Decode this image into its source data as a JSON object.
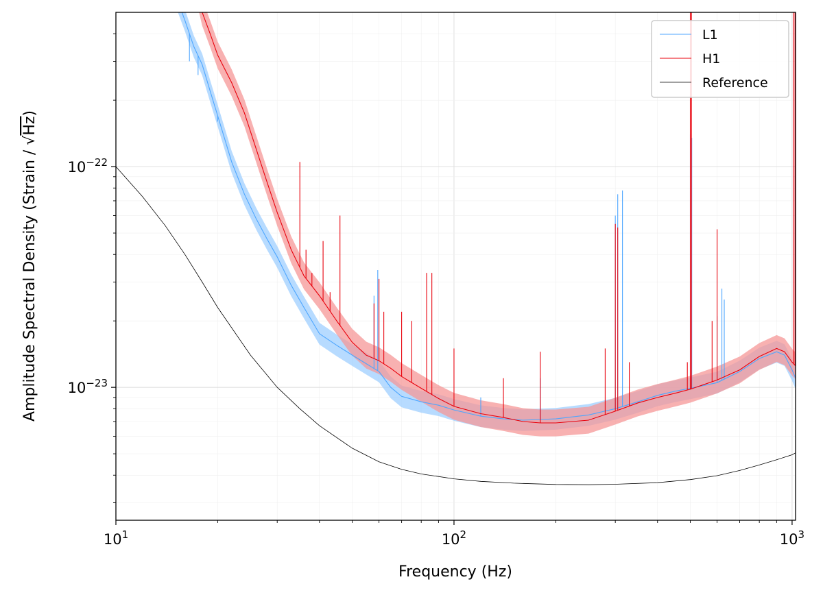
{
  "chart_data": {
    "type": "line",
    "title": "",
    "xlabel": "Frequency (Hz)",
    "ylabel_prefix": "Amplitude Spectral Density (Strain / ",
    "ylabel_radicand": "Hz",
    "ylabel_suffix": ")",
    "xscale": "log",
    "yscale": "log",
    "xlim": [
      10,
      1024
    ],
    "ylim": [
      2.5e-24,
      5e-22
    ],
    "grid": true,
    "legend_position": "top-right",
    "x_ticks": [
      {
        "value": 10,
        "base": "10",
        "exp": "1"
      },
      {
        "value": 100,
        "base": "10",
        "exp": "2"
      },
      {
        "value": 1000,
        "base": "10",
        "exp": "3"
      }
    ],
    "y_ticks": [
      {
        "value": 1e-23,
        "base": "10",
        "exp": "−23"
      },
      {
        "value": 1e-22,
        "base": "10",
        "exp": "−22"
      }
    ],
    "series": [
      {
        "name": "L1",
        "color": "#4da6ff",
        "band_color": "#9fcfff",
        "points": [
          [
            15,
            6e-22
          ],
          [
            16,
            4.6e-22
          ],
          [
            17,
            3.5e-22
          ],
          [
            18,
            2.9e-22
          ],
          [
            19,
            2.2e-22
          ],
          [
            20,
            1.7e-22
          ],
          [
            22,
            1.05e-22
          ],
          [
            24,
            7.5e-23
          ],
          [
            26,
            5.8e-23
          ],
          [
            28,
            4.7e-23
          ],
          [
            30,
            3.9e-23
          ],
          [
            33,
            2.9e-23
          ],
          [
            36,
            2.3e-23
          ],
          [
            40,
            1.75e-23
          ],
          [
            45,
            1.55e-23
          ],
          [
            50,
            1.4e-23
          ],
          [
            55,
            1.28e-23
          ],
          [
            60,
            1.18e-23
          ],
          [
            65,
            1e-23
          ],
          [
            70,
            9.1e-24
          ],
          [
            80,
            8.6e-24
          ],
          [
            90,
            8.3e-24
          ],
          [
            100,
            7.9e-24
          ],
          [
            120,
            7.4e-24
          ],
          [
            140,
            7.2e-24
          ],
          [
            160,
            7.1e-24
          ],
          [
            180,
            7.15e-24
          ],
          [
            200,
            7.2e-24
          ],
          [
            250,
            7.5e-24
          ],
          [
            300,
            8e-24
          ],
          [
            350,
            8.6e-24
          ],
          [
            400,
            9.2e-24
          ],
          [
            450,
            9.6e-24
          ],
          [
            500,
            9.9e-24
          ],
          [
            600,
            1.05e-23
          ],
          [
            700,
            1.18e-23
          ],
          [
            800,
            1.35e-23
          ],
          [
            900,
            1.45e-23
          ],
          [
            950,
            1.4e-23
          ],
          [
            1000,
            1.2e-23
          ],
          [
            1024,
            1.1e-23
          ]
        ],
        "band_ratio": 1.12,
        "peaks": [
          [
            16.5,
            3e-22
          ],
          [
            17.5,
            2.6e-22
          ],
          [
            20,
            1.6e-22
          ],
          [
            58,
            2.6e-23
          ],
          [
            59.5,
            3.4e-23
          ],
          [
            120,
            9e-24
          ],
          [
            180,
            1.1e-23
          ],
          [
            300,
            6e-23
          ],
          [
            305,
            7.5e-23
          ],
          [
            315,
            7.8e-23
          ],
          [
            500,
            1.4e-22
          ],
          [
            505,
            1.35e-22
          ],
          [
            600,
            2.1e-23
          ],
          [
            620,
            2.8e-23
          ],
          [
            630,
            2.5e-23
          ]
        ]
      },
      {
        "name": "H1",
        "color": "#e8000b",
        "band_color": "#f59797",
        "points": [
          [
            17.5,
            6e-22
          ],
          [
            18,
            5e-22
          ],
          [
            19,
            4e-22
          ],
          [
            20,
            3.2e-22
          ],
          [
            22,
            2.4e-22
          ],
          [
            24,
            1.75e-22
          ],
          [
            26,
            1.2e-22
          ],
          [
            28,
            8.5e-23
          ],
          [
            30,
            6.2e-23
          ],
          [
            33,
            4.2e-23
          ],
          [
            36,
            3.2e-23
          ],
          [
            40,
            2.6e-23
          ],
          [
            45,
            2e-23
          ],
          [
            50,
            1.6e-23
          ],
          [
            55,
            1.4e-23
          ],
          [
            60,
            1.32e-23
          ],
          [
            65,
            1.22e-23
          ],
          [
            70,
            1.12e-23
          ],
          [
            80,
            9.9e-24
          ],
          [
            90,
            8.9e-24
          ],
          [
            100,
            8.2e-24
          ],
          [
            120,
            7.6e-24
          ],
          [
            140,
            7.3e-24
          ],
          [
            160,
            7e-24
          ],
          [
            180,
            6.9e-24
          ],
          [
            200,
            6.9e-24
          ],
          [
            250,
            7.1e-24
          ],
          [
            300,
            7.8e-24
          ],
          [
            350,
            8.5e-24
          ],
          [
            400,
            9e-24
          ],
          [
            450,
            9.4e-24
          ],
          [
            500,
            9.8e-24
          ],
          [
            600,
            1.08e-23
          ],
          [
            700,
            1.2e-23
          ],
          [
            800,
            1.38e-23
          ],
          [
            900,
            1.5e-23
          ],
          [
            950,
            1.45e-23
          ],
          [
            1000,
            1.3e-23
          ],
          [
            1024,
            1.25e-23
          ]
        ],
        "band_ratio": 1.15,
        "peaks": [
          [
            35,
            1.05e-22
          ],
          [
            36.5,
            4.2e-23
          ],
          [
            38,
            3.3e-23
          ],
          [
            41,
            4.6e-23
          ],
          [
            43,
            2.7e-23
          ],
          [
            46,
            6e-23
          ],
          [
            58,
            2.4e-23
          ],
          [
            60,
            3.1e-23
          ],
          [
            62,
            2.2e-23
          ],
          [
            70,
            2.2e-23
          ],
          [
            75,
            2e-23
          ],
          [
            83,
            3.3e-23
          ],
          [
            86,
            3.3e-23
          ],
          [
            100,
            1.5e-23
          ],
          [
            140,
            1.1e-23
          ],
          [
            180,
            1.45e-23
          ],
          [
            280,
            1.5e-23
          ],
          [
            300,
            5.5e-23
          ],
          [
            305,
            5.3e-23
          ],
          [
            330,
            1.3e-23
          ],
          [
            490,
            1.3e-23
          ],
          [
            500,
            5e-22
          ],
          [
            504,
            5e-22
          ],
          [
            580,
            2e-23
          ],
          [
            600,
            5.2e-23
          ],
          [
            1010,
            5e-22
          ],
          [
            1020,
            5e-22
          ]
        ]
      },
      {
        "name": "Reference",
        "color": "#000000",
        "points": [
          [
            10,
            1e-22
          ],
          [
            12,
            7.3e-23
          ],
          [
            14,
            5.4e-23
          ],
          [
            16,
            4e-23
          ],
          [
            18,
            3e-23
          ],
          [
            20,
            2.3e-23
          ],
          [
            25,
            1.4e-23
          ],
          [
            30,
            1e-23
          ],
          [
            35,
            8e-24
          ],
          [
            40,
            6.7e-24
          ],
          [
            50,
            5.3e-24
          ],
          [
            60,
            4.6e-24
          ],
          [
            70,
            4.25e-24
          ],
          [
            80,
            4.05e-24
          ],
          [
            100,
            3.85e-24
          ],
          [
            120,
            3.75e-24
          ],
          [
            150,
            3.68e-24
          ],
          [
            200,
            3.63e-24
          ],
          [
            250,
            3.62e-24
          ],
          [
            300,
            3.64e-24
          ],
          [
            400,
            3.7e-24
          ],
          [
            500,
            3.82e-24
          ],
          [
            600,
            3.98e-24
          ],
          [
            700,
            4.2e-24
          ],
          [
            800,
            4.45e-24
          ],
          [
            900,
            4.7e-24
          ],
          [
            1000,
            4.95e-24
          ],
          [
            1024,
            5.05e-24
          ]
        ]
      }
    ]
  }
}
